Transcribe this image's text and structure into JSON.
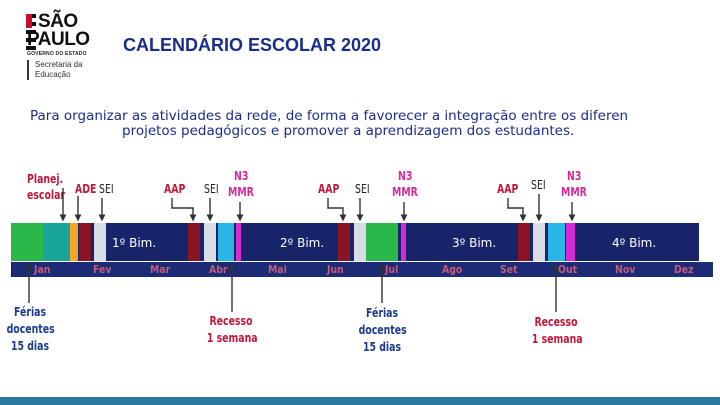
{
  "logo": {
    "line1": "SÃO",
    "line2": "PAULO",
    "line3": "GOVERNO DO ESTADO",
    "sec1": "Secretaria da",
    "sec2": "Educação"
  },
  "title": "CALENDÁRIO ESCOLAR 2020",
  "description": {
    "line1": "Para organizar as atividades da rede, de forma a favorecer a integração entre os diferen",
    "line2": "projetos pedagógicos e promover a aprendizagem dos estudantes."
  },
  "top_labels": {
    "planej1": "Planej.",
    "planej2": "escolar",
    "ade": "ADE",
    "sei1": "SEI",
    "aap1": "AAP",
    "sei2": "SEI",
    "n3_1": "N3",
    "mmr1": "MMR",
    "aap2": "AAP",
    "sei3": "SEI",
    "n3_2": "N3",
    "mmr2": "MMR",
    "aap3": "AAP",
    "sei4": "SEI",
    "n3_3": "N3",
    "mmr3": "MMR"
  },
  "bimesters": [
    "1º Bim.",
    "2º Bim.",
    "3º Bim.",
    "4º Bim."
  ],
  "months": [
    "Jan",
    "Fev",
    "Mar",
    "Abr",
    "Mai",
    "Jun",
    "Jul",
    "Ago",
    "Set",
    "Out",
    "Nov",
    "Dez"
  ],
  "bottom_labels": {
    "ferias1": [
      "Férias",
      "docentes",
      "15 dias"
    ],
    "recesso1": [
      "Recesso",
      "1 semana"
    ],
    "ferias2": [
      "Férias",
      "docentes",
      "15 dias"
    ],
    "recesso2": [
      "Recesso",
      "1 semana"
    ]
  },
  "colors": {
    "navy": "#17246a",
    "green": "#2bb84a",
    "teal": "#1aa59a",
    "cyan": "#27b6e6",
    "orange": "#f5a623",
    "dark_red": "#8a1324",
    "light_gray": "#d8dce6",
    "magenta": "#d42ad4",
    "red_label": "#c0183a",
    "pink_label": "#d42a9a"
  }
}
